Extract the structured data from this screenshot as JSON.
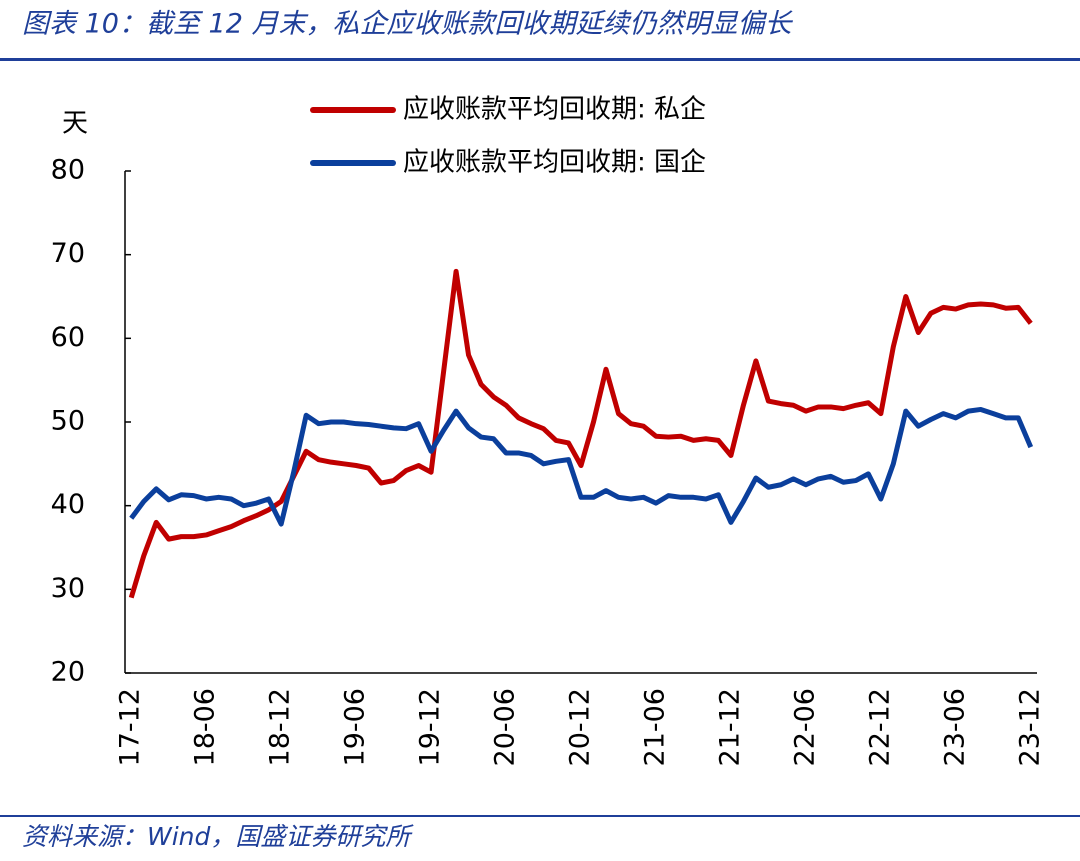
{
  "chart_data": {
    "type": "line",
    "title": "图表 10：截至 12 月末，私企应收账款回收期延续仍然明显偏长",
    "y_label": "天",
    "source": "资料来源：Wind，国盛证券研究所",
    "categories": [
      "17-12",
      null,
      null,
      null,
      null,
      null,
      "18-06",
      null,
      null,
      null,
      null,
      null,
      "18-12",
      null,
      null,
      null,
      null,
      null,
      "19-06",
      null,
      null,
      null,
      null,
      null,
      "19-12",
      null,
      null,
      null,
      null,
      null,
      "20-06",
      null,
      null,
      null,
      null,
      null,
      "20-12",
      null,
      null,
      null,
      null,
      null,
      "21-06",
      null,
      null,
      null,
      null,
      null,
      "21-12",
      null,
      null,
      null,
      null,
      null,
      "22-06",
      null,
      null,
      null,
      null,
      null,
      "22-12",
      null,
      null,
      null,
      null,
      null,
      "23-06",
      null,
      null,
      null,
      null,
      null,
      "23-12"
    ],
    "series": [
      {
        "name": "应收账款平均回收期: 私企",
        "color": "#c00000",
        "values": [
          29,
          34,
          38,
          36,
          36.3,
          36.3,
          36.5,
          37,
          37.5,
          38.2,
          38.8,
          39.5,
          40.5,
          43.5,
          46.5,
          45.5,
          45.2,
          45,
          44.8,
          44.5,
          42.7,
          43,
          44.2,
          44.8,
          44,
          56,
          68,
          58,
          54.5,
          53,
          52,
          50.5,
          49.8,
          49.2,
          47.8,
          47.5,
          44.8,
          50,
          56.3,
          51,
          49.8,
          49.5,
          48.3,
          48.2,
          48.3,
          47.8,
          48,
          47.8,
          46,
          52,
          57.3,
          52.5,
          52.2,
          52,
          51.3,
          51.8,
          51.8,
          51.6,
          52,
          52.3,
          51,
          59,
          65,
          60.7,
          63,
          63.7,
          63.5,
          64,
          64.1,
          64,
          63.6,
          63.7,
          61.8
        ]
      },
      {
        "name": "应收账款平均回收期: 国企",
        "color": "#0b3f9c",
        "values": [
          38.5,
          40.5,
          42,
          40.7,
          41.3,
          41.2,
          40.8,
          41,
          40.8,
          40,
          40.3,
          40.8,
          37.8,
          44,
          50.8,
          49.8,
          50,
          50,
          49.8,
          49.7,
          49.5,
          49.3,
          49.2,
          49.8,
          46.5,
          49,
          51.3,
          49.3,
          48.2,
          48,
          46.3,
          46.3,
          46,
          45,
          45.3,
          45.5,
          41,
          41,
          41.8,
          41,
          40.8,
          41,
          40.3,
          41.2,
          41,
          41,
          40.8,
          41.3,
          38,
          40.5,
          43.3,
          42.2,
          42.5,
          43.2,
          42.5,
          43.2,
          43.5,
          42.8,
          43,
          43.8,
          40.8,
          45,
          51.3,
          49.5,
          50.3,
          51,
          50.5,
          51.3,
          51.5,
          51,
          50.5,
          50.5,
          47
        ]
      }
    ],
    "ylim": [
      20,
      80
    ],
    "yticks": [
      20,
      30,
      40,
      50,
      60,
      70,
      80
    ],
    "grid": false,
    "legend": "top"
  }
}
